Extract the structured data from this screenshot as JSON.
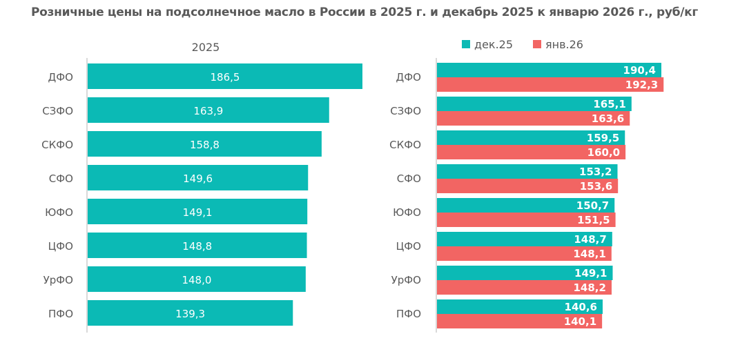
{
  "title": "Розничные цены на подсолнечное масло в России в 2025 г. и декабрь 2025 к январю 2026 г., руб/кг",
  "colors": {
    "teal": "#0BBAB5",
    "red": "#F26563",
    "axis": "#D9D9D9",
    "text": "#595959"
  },
  "chart_data": [
    {
      "type": "bar",
      "orientation": "horizontal",
      "title": "2025",
      "categories": [
        "ДФО",
        "СЗФО",
        "СКФО",
        "СФО",
        "ЮФО",
        "ЦФО",
        "УрФО",
        "ПФО"
      ],
      "values": [
        186.5,
        163.9,
        158.8,
        149.6,
        149.1,
        148.8,
        148.0,
        139.3
      ],
      "labels": [
        "186,5",
        "163,9",
        "158,8",
        "149,6",
        "149,1",
        "148,8",
        "148,0",
        "139,3"
      ]
    },
    {
      "type": "bar",
      "orientation": "horizontal",
      "legend": "top",
      "categories": [
        "ДФО",
        "СЗФО",
        "СКФО",
        "СФО",
        "ЮФО",
        "ЦФО",
        "УрФО",
        "ПФО"
      ],
      "series": [
        {
          "name": "дек.25",
          "values": [
            190.4,
            165.1,
            159.5,
            153.2,
            150.7,
            148.7,
            149.1,
            140.6
          ],
          "labels": [
            "190,4",
            "165,1",
            "159,5",
            "153,2",
            "150,7",
            "148,7",
            "149,1",
            "140,6"
          ]
        },
        {
          "name": "янв.26",
          "values": [
            192.3,
            163.6,
            160.0,
            153.6,
            151.5,
            148.1,
            148.2,
            140.1
          ],
          "labels": [
            "192,3",
            "163,6",
            "160,0",
            "153,6",
            "151,5",
            "148,1",
            "148,2",
            "140,1"
          ]
        }
      ]
    }
  ]
}
